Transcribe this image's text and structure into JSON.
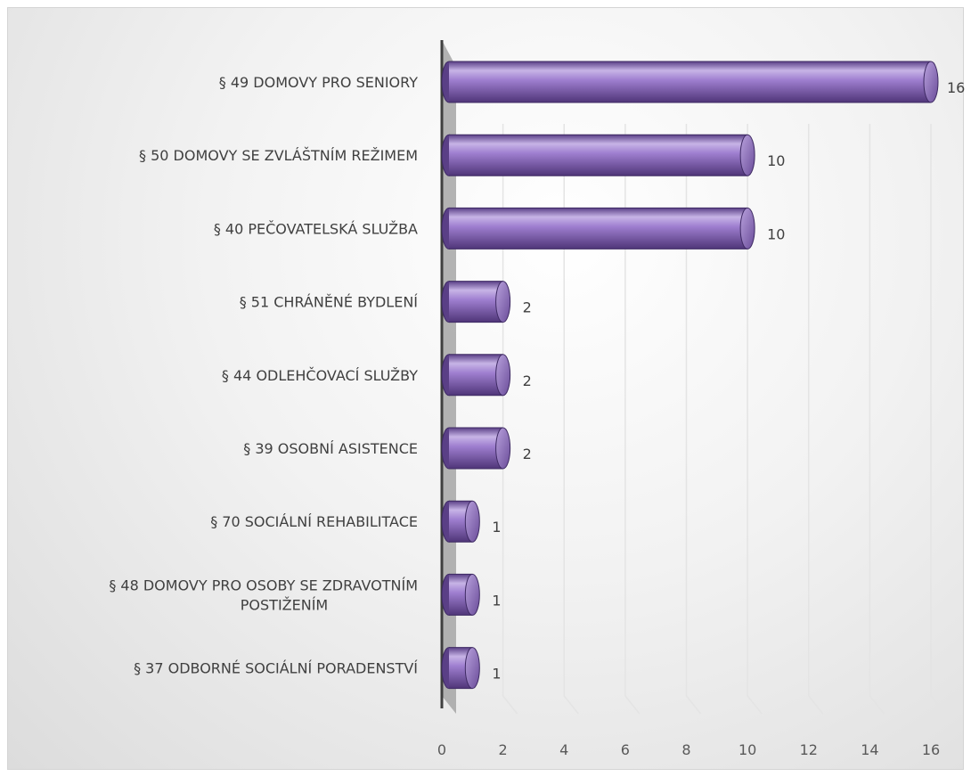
{
  "chart_data": {
    "type": "bar",
    "orientation": "horizontal",
    "style": "3d-cylinder",
    "categories": [
      "§ 49 DOMOVY PRO SENIORY",
      "§ 50 DOMOVY SE ZVLÁŠTNÍM REŽIMEM",
      "§ 40 PEČOVATELSKÁ SLUŽBA",
      "§ 51 CHRÁNĚNÉ BYDLENÍ",
      "§ 44 ODLEHČOVACÍ SLUŽBY",
      "§ 39 OSOBNÍ ASISTENCE",
      "§ 70 SOCIÁLNÍ REHABILITACE",
      "§ 48 DOMOVY PRO OSOBY SE ZDRAVOTNÍM POSTIŽENÍM",
      "§ 37 ODBORNÉ SOCIÁLNÍ PORADENSTVÍ"
    ],
    "values": [
      16,
      10,
      10,
      2,
      2,
      2,
      1,
      1,
      1
    ],
    "data_labels": [
      "16",
      "10",
      "10",
      "2",
      "2",
      "2",
      "1",
      "1",
      "1"
    ],
    "x_ticks": [
      "0",
      "2",
      "4",
      "6",
      "8",
      "10",
      "12",
      "14",
      "16"
    ],
    "xlim": [
      0,
      16
    ],
    "grid": true,
    "legend": "none",
    "colors": {
      "bar_light": "#c7b4e6",
      "bar_mid": "#8e6bbf",
      "bar_dark": "#5a3f86",
      "bar_outline": "#3e2a63",
      "axis": "#3f3f3f",
      "side_wall": "#a6a6a6",
      "grid": "#e4e4e4"
    }
  }
}
